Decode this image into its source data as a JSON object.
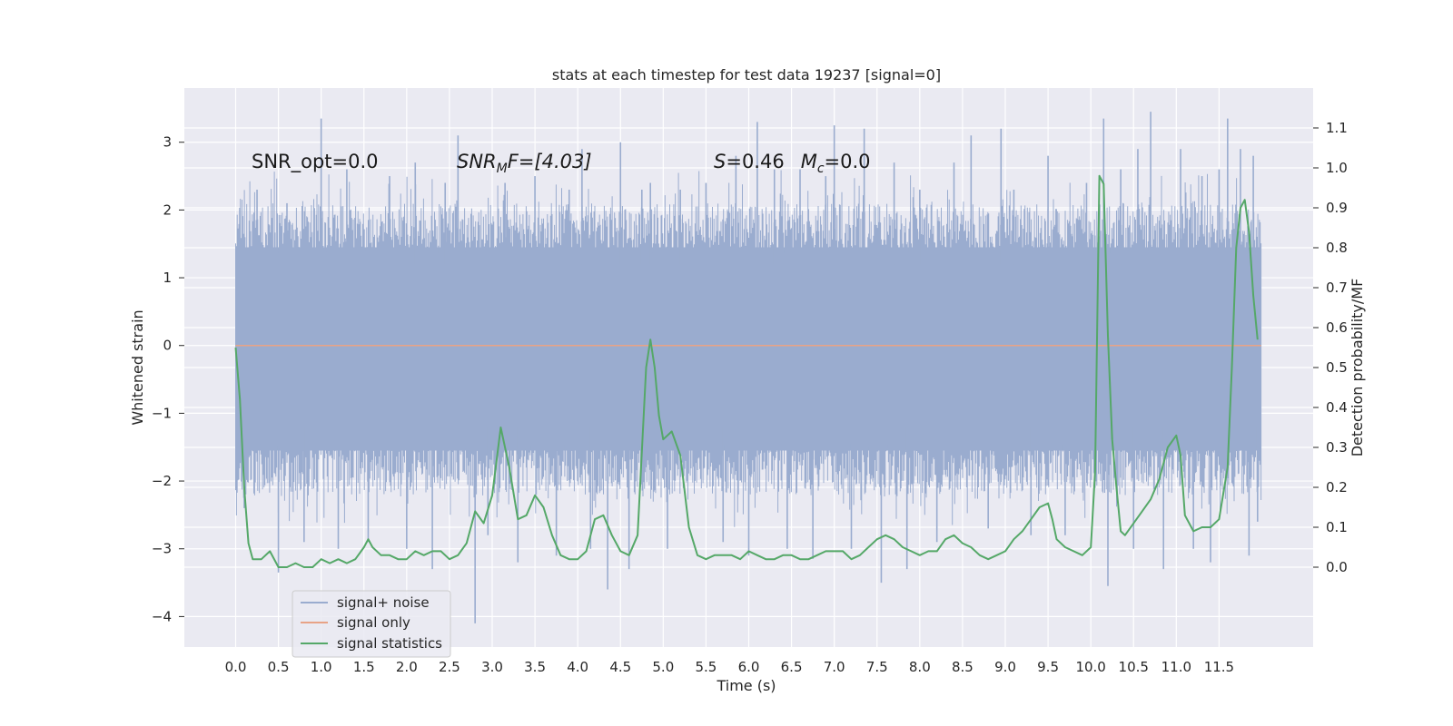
{
  "chart_data": {
    "type": "line",
    "title": "stats at each timestep for test data 19237 [signal=0]",
    "xlabel": "Time (s)",
    "ylabel": "Whitened strain",
    "y2label": "Detection probability/MF",
    "xlim": [
      -0.6,
      12.6
    ],
    "ylim": [
      -4.45,
      3.8
    ],
    "y2lim": [
      -0.2,
      1.2
    ],
    "x_ticks": [
      "0.0",
      "0.5",
      "1.0",
      "1.5",
      "2.0",
      "2.5",
      "3.0",
      "3.5",
      "4.0",
      "4.5",
      "5.0",
      "5.5",
      "6.0",
      "6.5",
      "7.0",
      "7.5",
      "8.0",
      "8.5",
      "9.0",
      "9.5",
      "10.0",
      "10.5",
      "11.0",
      "11.5"
    ],
    "y_ticks": [
      "3",
      "2",
      "1",
      "0",
      "−1",
      "−2",
      "−3",
      "−4"
    ],
    "y2_ticks": [
      "1.1",
      "1.0",
      "0.9",
      "0.8",
      "0.7",
      "0.6",
      "0.5",
      "0.4",
      "0.3",
      "0.2",
      "0.1",
      "0.0"
    ],
    "grid": true,
    "legend_position": "lower-left",
    "annotations": {
      "snr_opt": "SNR_opt=0.0",
      "snr_mf_main": "SNR",
      "snr_mf_sub": "M",
      "snr_mf_rest": "F=[4.03]",
      "s_var": "S",
      "s_val": "=0.46",
      "mc_var": "M",
      "mc_sub": "c",
      "mc_val": "=0.0"
    },
    "series": [
      {
        "name": "signal+ noise",
        "color": "#9aaccf",
        "t_range": [
          0.0,
          11.99
        ],
        "band_percentile_5_95": [
          -1.55,
          1.45
        ],
        "spikes": [
          [
            0.05,
            2.0
          ],
          [
            0.1,
            -2.4
          ],
          [
            0.25,
            2.3
          ],
          [
            0.5,
            -3.35
          ],
          [
            0.6,
            2.1
          ],
          [
            0.8,
            -2.9
          ],
          [
            1.0,
            3.35
          ],
          [
            1.2,
            -3.0
          ],
          [
            1.3,
            2.6
          ],
          [
            1.55,
            -2.9
          ],
          [
            1.8,
            2.5
          ],
          [
            2.0,
            -3.0
          ],
          [
            2.1,
            2.7
          ],
          [
            2.3,
            -3.3
          ],
          [
            2.45,
            2.4
          ],
          [
            2.6,
            3.1
          ],
          [
            2.8,
            -4.1
          ],
          [
            2.95,
            -2.8
          ],
          [
            3.15,
            2.4
          ],
          [
            3.3,
            -3.2
          ],
          [
            3.5,
            2.5
          ],
          [
            3.75,
            -3.1
          ],
          [
            3.9,
            2.3
          ],
          [
            4.05,
            2.9
          ],
          [
            4.15,
            -3.0
          ],
          [
            4.35,
            -3.6
          ],
          [
            4.5,
            3.0
          ],
          [
            4.6,
            -3.3
          ],
          [
            4.75,
            2.3
          ],
          [
            4.85,
            2.4
          ],
          [
            5.05,
            -3.0
          ],
          [
            5.2,
            2.3
          ],
          [
            5.5,
            2.4
          ],
          [
            5.7,
            -2.9
          ],
          [
            5.85,
            2.8
          ],
          [
            6.0,
            -3.1
          ],
          [
            6.1,
            3.3
          ],
          [
            6.3,
            2.6
          ],
          [
            6.45,
            -3.0
          ],
          [
            6.6,
            2.6
          ],
          [
            6.75,
            -3.15
          ],
          [
            6.9,
            2.5
          ],
          [
            7.0,
            3.25
          ],
          [
            7.2,
            -3.0
          ],
          [
            7.35,
            3.2
          ],
          [
            7.55,
            -3.5
          ],
          [
            7.7,
            2.7
          ],
          [
            7.85,
            -3.3
          ],
          [
            8.0,
            2.3
          ],
          [
            8.2,
            -2.9
          ],
          [
            8.4,
            2.7
          ],
          [
            8.6,
            3.1
          ],
          [
            8.8,
            -2.7
          ],
          [
            8.95,
            3.2
          ],
          [
            9.1,
            2.3
          ],
          [
            9.3,
            -2.8
          ],
          [
            9.5,
            2.8
          ],
          [
            9.7,
            -2.8
          ],
          [
            9.95,
            2.4
          ],
          [
            10.15,
            3.35
          ],
          [
            10.2,
            -3.55
          ],
          [
            10.35,
            2.6
          ],
          [
            10.5,
            -3.0
          ],
          [
            10.55,
            2.9
          ],
          [
            10.7,
            3.45
          ],
          [
            10.85,
            -3.3
          ],
          [
            11.05,
            2.9
          ],
          [
            11.2,
            -3.0
          ],
          [
            11.3,
            2.5
          ],
          [
            11.4,
            -3.2
          ],
          [
            11.5,
            2.6
          ],
          [
            11.6,
            3.35
          ],
          [
            11.75,
            2.9
          ],
          [
            11.85,
            -3.1
          ],
          [
            11.9,
            2.8
          ],
          [
            11.95,
            -2.6
          ]
        ]
      },
      {
        "name": "signal only",
        "color": "#e8a386",
        "x": [
          0.0,
          11.99
        ],
        "y": [
          0.0,
          0.0
        ]
      },
      {
        "name": "signal statistics",
        "color": "#55a868",
        "axis": "right",
        "x": [
          0.0,
          0.05,
          0.1,
          0.15,
          0.2,
          0.25,
          0.3,
          0.4,
          0.5,
          0.6,
          0.7,
          0.8,
          0.9,
          1.0,
          1.1,
          1.2,
          1.3,
          1.4,
          1.5,
          1.55,
          1.6,
          1.7,
          1.8,
          1.9,
          2.0,
          2.1,
          2.2,
          2.3,
          2.4,
          2.5,
          2.6,
          2.7,
          2.8,
          2.9,
          3.0,
          3.1,
          3.2,
          3.3,
          3.4,
          3.5,
          3.6,
          3.7,
          3.8,
          3.9,
          4.0,
          4.1,
          4.2,
          4.3,
          4.4,
          4.5,
          4.6,
          4.7,
          4.8,
          4.85,
          4.9,
          4.95,
          5.0,
          5.05,
          5.1,
          5.2,
          5.3,
          5.4,
          5.5,
          5.6,
          5.7,
          5.8,
          5.9,
          6.0,
          6.1,
          6.2,
          6.3,
          6.4,
          6.5,
          6.6,
          6.7,
          6.8,
          6.9,
          7.0,
          7.1,
          7.2,
          7.3,
          7.4,
          7.5,
          7.6,
          7.7,
          7.8,
          7.9,
          8.0,
          8.1,
          8.2,
          8.3,
          8.4,
          8.5,
          8.6,
          8.7,
          8.8,
          8.9,
          9.0,
          9.1,
          9.2,
          9.3,
          9.4,
          9.5,
          9.55,
          9.6,
          9.7,
          9.8,
          9.9,
          10.0,
          10.05,
          10.1,
          10.15,
          10.2,
          10.25,
          10.3,
          10.35,
          10.4,
          10.5,
          10.6,
          10.7,
          10.8,
          10.9,
          11.0,
          11.05,
          11.1,
          11.2,
          11.3,
          11.4,
          11.5,
          11.6,
          11.65,
          11.7,
          11.75,
          11.8,
          11.85,
          11.9,
          11.95
        ],
        "y": [
          0.55,
          0.42,
          0.2,
          0.06,
          0.02,
          0.02,
          0.02,
          0.04,
          0.0,
          0.0,
          0.01,
          0.0,
          0.0,
          0.02,
          0.01,
          0.02,
          0.01,
          0.02,
          0.05,
          0.07,
          0.05,
          0.03,
          0.03,
          0.02,
          0.02,
          0.04,
          0.03,
          0.04,
          0.04,
          0.02,
          0.03,
          0.06,
          0.14,
          0.11,
          0.18,
          0.35,
          0.25,
          0.12,
          0.13,
          0.18,
          0.15,
          0.08,
          0.03,
          0.02,
          0.02,
          0.04,
          0.12,
          0.13,
          0.08,
          0.04,
          0.03,
          0.08,
          0.5,
          0.57,
          0.5,
          0.38,
          0.32,
          0.33,
          0.34,
          0.28,
          0.1,
          0.03,
          0.02,
          0.03,
          0.03,
          0.03,
          0.02,
          0.04,
          0.03,
          0.02,
          0.02,
          0.03,
          0.03,
          0.02,
          0.02,
          0.03,
          0.04,
          0.04,
          0.04,
          0.02,
          0.03,
          0.05,
          0.07,
          0.08,
          0.07,
          0.05,
          0.04,
          0.03,
          0.04,
          0.04,
          0.07,
          0.08,
          0.06,
          0.05,
          0.03,
          0.02,
          0.03,
          0.04,
          0.07,
          0.09,
          0.12,
          0.15,
          0.16,
          0.12,
          0.07,
          0.05,
          0.04,
          0.03,
          0.05,
          0.24,
          0.98,
          0.96,
          0.58,
          0.32,
          0.2,
          0.09,
          0.08,
          0.11,
          0.14,
          0.17,
          0.22,
          0.3,
          0.33,
          0.28,
          0.13,
          0.09,
          0.1,
          0.1,
          0.12,
          0.25,
          0.5,
          0.8,
          0.9,
          0.92,
          0.84,
          0.68,
          0.57
        ]
      }
    ]
  }
}
